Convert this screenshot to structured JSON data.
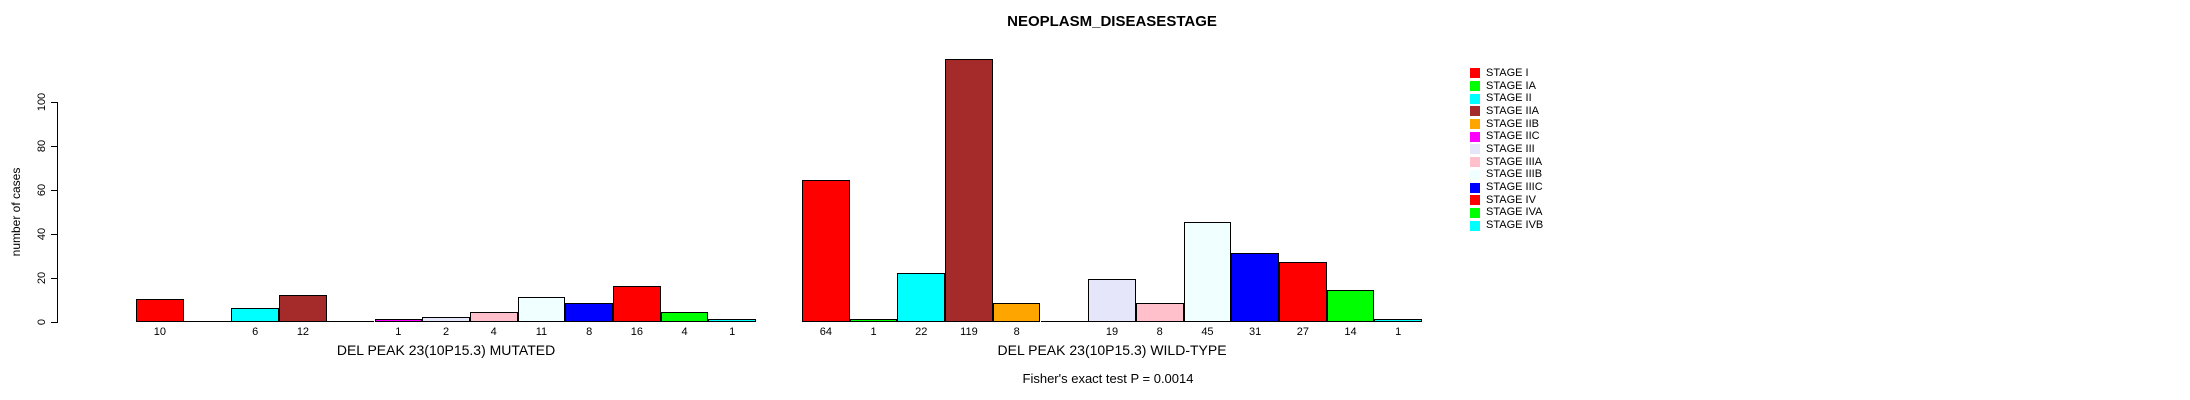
{
  "chart_data": {
    "type": "bar",
    "title": "NEOPLASM_DISEASESTAGE",
    "ylabel": "number of cases",
    "yticks": [
      0,
      20,
      40,
      60,
      80,
      100
    ],
    "ylim": [
      0,
      119
    ],
    "grid": false,
    "legend_position": "right",
    "categories": [
      "STAGE I",
      "STAGE IA",
      "STAGE II",
      "STAGE IIA",
      "STAGE IIB",
      "STAGE IIC",
      "STAGE III",
      "STAGE IIIA",
      "STAGE IIIB",
      "STAGE IIIC",
      "STAGE IV",
      "STAGE IVA",
      "STAGE IVB"
    ],
    "colors": [
      "#FF0000",
      "#00FF00",
      "#00FFFF",
      "#A52A2A",
      "#FFA500",
      "#FF00FF",
      "#E6E6FA",
      "#FFC0CB",
      "#F0FFFF",
      "#0000FF",
      "#FF0000",
      "#00FF00",
      "#00FFFF"
    ],
    "series": [
      {
        "name": "DEL PEAK 23(10P15.3) MUTATED",
        "values": [
          10,
          0,
          6,
          12,
          0,
          1,
          2,
          4,
          11,
          8,
          16,
          4,
          1
        ]
      },
      {
        "name": "DEL PEAK 23(10P15.3) WILD-TYPE",
        "values": [
          64,
          1,
          22,
          119,
          8,
          0,
          19,
          8,
          45,
          31,
          27,
          14,
          1
        ]
      }
    ],
    "bar_value_labels": "shown under each non-zero bar",
    "footnote": "Fisher's exact test P = 0.0014",
    "bar_border_color": "#000000",
    "background_color": "#FFFFFF"
  }
}
